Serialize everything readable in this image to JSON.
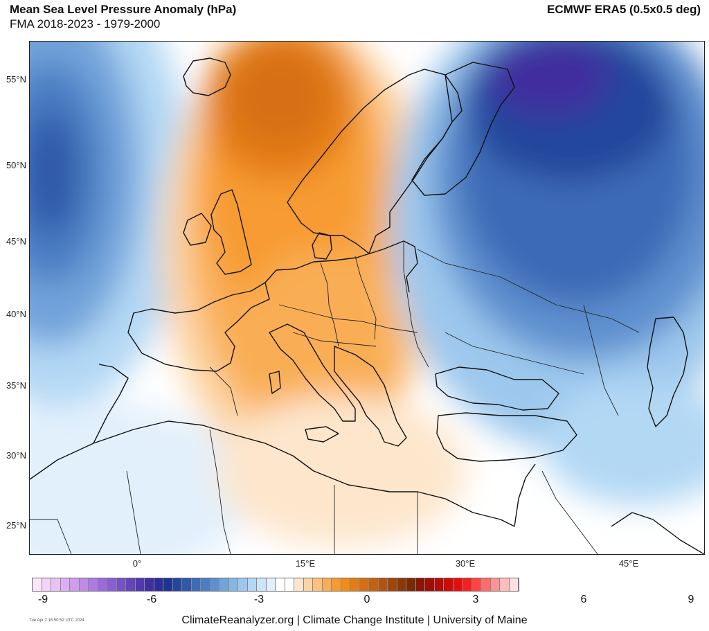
{
  "header": {
    "title": "Mean Sea Level Pressure Anomaly (hPa)",
    "subtitle": "FMA 2018-2023 - 1979-2000",
    "source": "ECMWF ERA5 (0.5x0.5 deg)"
  },
  "axes": {
    "lat_labels": [
      "55°N",
      "50°N",
      "45°N",
      "40°N",
      "35°N",
      "30°N",
      "25°N"
    ],
    "lon_labels": [
      "0°",
      "15°E",
      "30°E",
      "45°E"
    ]
  },
  "colorbar": {
    "ticks": [
      "-9",
      "-6",
      "-3",
      "0",
      "3",
      "6",
      "9"
    ],
    "colors": [
      "#fbe6fb",
      "#f3d4f8",
      "#e9c2f5",
      "#ddaff2",
      "#cf9cee",
      "#c08ae9",
      "#af79e3",
      "#9c69db",
      "#8a5dd2",
      "#774fc8",
      "#6444bb",
      "#5238ad",
      "#3f2f9f",
      "#2c2d97",
      "#1d3591",
      "#24479c",
      "#2f58a8",
      "#3d6bb6",
      "#4c7ec3",
      "#5e90cf",
      "#72a3da",
      "#87b6e4",
      "#9dc8ed",
      "#b3d8f4",
      "#cbe5f9",
      "#e2f0fc",
      "#ffffff",
      "#ffffff",
      "#fde6cc",
      "#fcd5a6",
      "#fbc27d",
      "#f9ae55",
      "#f79b30",
      "#f08c1a",
      "#e47d14",
      "#d56f13",
      "#c56211",
      "#b2540e",
      "#9f460b",
      "#8b3808",
      "#7b2a05",
      "#8a1405",
      "#a10d07",
      "#b80b08",
      "#cf0a0a",
      "#e60d0d",
      "#f52020",
      "#fd4545",
      "#fe6c6c",
      "#ff9393",
      "#ffbcbc",
      "#ffe0e0"
    ]
  },
  "footer": {
    "timestamp": "Tue Apr  2 16:50:52 UTC 2024",
    "credit": "ClimateReanalyzer.org | Climate Change Institute | University of Maine"
  }
}
